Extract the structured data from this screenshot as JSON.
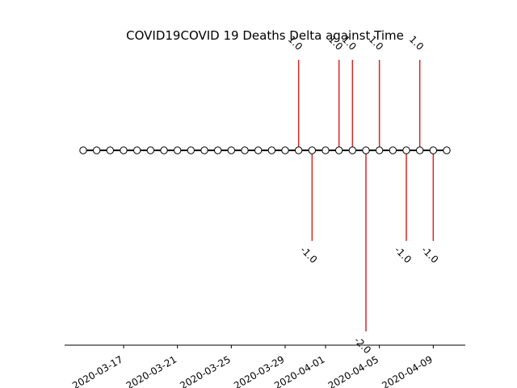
{
  "chart_data": {
    "type": "timeline-stem",
    "title": "COVID19COVID 19 Deaths Delta against Time",
    "xlabel": "",
    "ylabel": "",
    "x_start": "2020-03-14",
    "x_end": "2020-04-10",
    "xticks": [
      "2020-03-17",
      "2020-03-21",
      "2020-03-25",
      "2020-03-29",
      "2020-04-01",
      "2020-04-05",
      "2020-04-09"
    ],
    "series": [
      {
        "dates": [
          "2020-03-30",
          "2020-03-31",
          "2020-04-02",
          "2020-04-03",
          "2020-04-04",
          "2020-04-05",
          "2020-04-07",
          "2020-04-08",
          "2020-04-09"
        ],
        "values": [
          1.0,
          -1.0,
          1.0,
          1.0,
          -2.0,
          1.0,
          -1.0,
          1.0,
          -1.0
        ],
        "labels": [
          "1.0",
          "-1.0",
          "1.0",
          "1.0",
          "-2.0",
          "1.0",
          "-1.0",
          "1.0",
          "-1.0"
        ]
      }
    ],
    "stem_color": "#d62728",
    "marker_face": "#ffffff",
    "marker_edge": "#000000",
    "grid": false
  }
}
